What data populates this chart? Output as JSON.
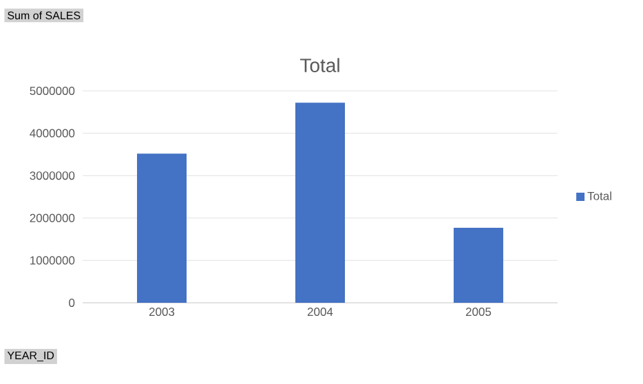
{
  "chart_data": {
    "type": "bar",
    "title": "Total",
    "categories": [
      "2003",
      "2004",
      "2005"
    ],
    "series": [
      {
        "name": "Total",
        "color": "#4472c4",
        "values": [
          3520000,
          4720000,
          1770000
        ]
      }
    ],
    "ylim": [
      0,
      5000000
    ],
    "yticks": [
      0,
      1000000,
      2000000,
      3000000,
      4000000,
      5000000
    ],
    "grid": "y",
    "legend": "right",
    "annotations": [
      "Sum of SALES",
      "YEAR_ID"
    ]
  }
}
